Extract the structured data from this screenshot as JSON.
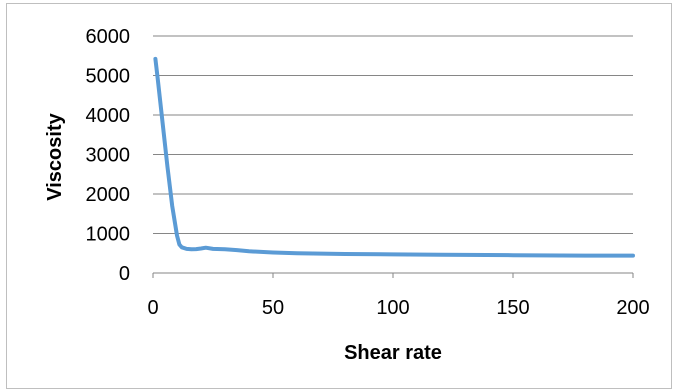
{
  "chart_data": {
    "type": "line",
    "title": "",
    "xlabel": "Shear rate",
    "ylabel": "Viscosity",
    "xlim": [
      0,
      200
    ],
    "ylim": [
      0,
      6000
    ],
    "x_ticks": [
      0,
      50,
      100,
      150,
      200
    ],
    "y_ticks": [
      0,
      1000,
      2000,
      3000,
      4000,
      5000,
      6000
    ],
    "grid": "horizontal",
    "legend": "none",
    "series": [
      {
        "color": "#5b9bd5",
        "x": [
          1,
          2,
          4,
          6,
          8,
          10,
          11,
          12,
          14,
          16,
          18,
          20,
          22,
          25,
          30,
          35,
          40,
          50,
          60,
          70,
          80,
          100,
          120,
          150,
          180,
          200
        ],
        "y": [
          5420,
          4900,
          3800,
          2700,
          1700,
          950,
          720,
          650,
          610,
          600,
          605,
          620,
          640,
          610,
          600,
          580,
          550,
          520,
          500,
          490,
          480,
          470,
          460,
          450,
          440,
          440
        ]
      }
    ]
  }
}
